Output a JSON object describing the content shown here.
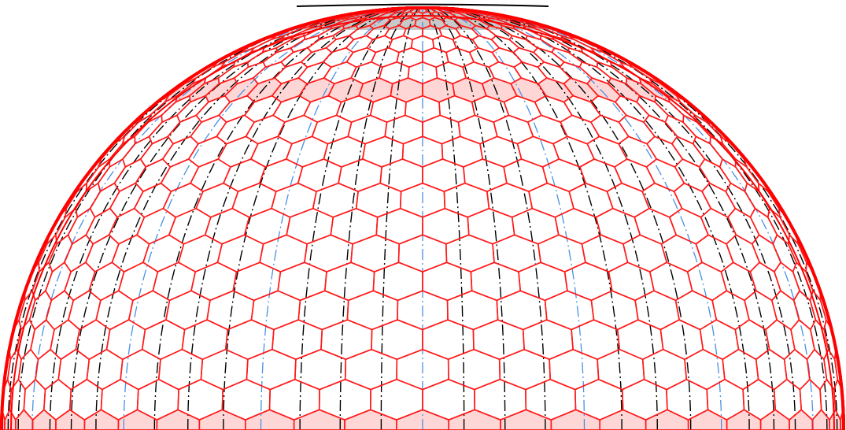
{
  "figure": {
    "description_text": "",
    "colors": {
      "background": "#ffffff",
      "hex_edge": "#ff1a1a",
      "hex_fill_band": "#ffd6d6",
      "meridian_black": "#000000",
      "meridian_blue": "#4a90e2",
      "cap_fill": "#c9c9c9",
      "outline": "#ff0000"
    },
    "layers": [
      {
        "name": "hexagonal-cell-lattice",
        "style": "solid"
      },
      {
        "name": "shaded-hexagon-bands",
        "style": "filled"
      },
      {
        "name": "black-meridian-lines",
        "style": "dash-dot"
      },
      {
        "name": "blue-meridian-lines",
        "style": "dash-dot"
      },
      {
        "name": "polar-cap",
        "style": "filled"
      },
      {
        "name": "dome-outline",
        "style": "solid"
      }
    ]
  }
}
